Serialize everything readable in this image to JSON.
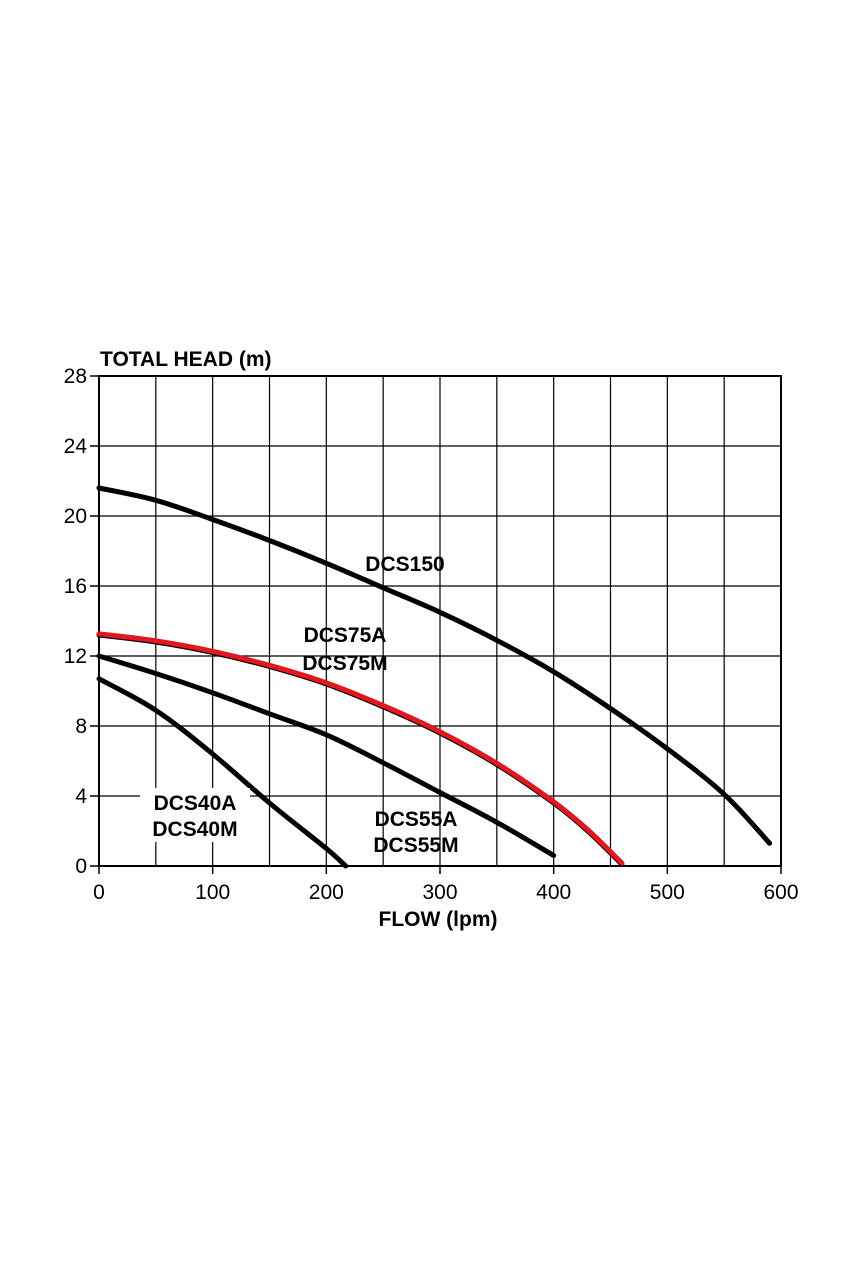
{
  "chart_data": {
    "type": "line",
    "ylabel": "TOTAL HEAD (m)",
    "xlabel": "FLOW (lpm)",
    "xlim": [
      0,
      600
    ],
    "ylim": [
      0,
      28
    ],
    "xticks": [
      0,
      100,
      200,
      300,
      400,
      500,
      600
    ],
    "yticks": [
      0,
      4,
      8,
      12,
      16,
      20,
      24,
      28
    ],
    "x_grid_step": 50,
    "y_grid_step": 4,
    "grid": true,
    "series": [
      {
        "name": "DCS150",
        "labels": [
          "DCS150"
        ],
        "color": "#000000",
        "points": [
          [
            0,
            21.6
          ],
          [
            50,
            20.9
          ],
          [
            100,
            19.8
          ],
          [
            150,
            18.6
          ],
          [
            200,
            17.3
          ],
          [
            250,
            15.9
          ],
          [
            300,
            14.5
          ],
          [
            350,
            12.9
          ],
          [
            400,
            11.1
          ],
          [
            450,
            9.0
          ],
          [
            500,
            6.7
          ],
          [
            550,
            4.1
          ],
          [
            590,
            1.3
          ]
        ]
      },
      {
        "name": "DCS75A / DCS75M",
        "labels": [
          "DCS75A",
          "DCS75M"
        ],
        "color": "#000000",
        "accent": "#e3171f",
        "points": [
          [
            0,
            13.2
          ],
          [
            50,
            12.8
          ],
          [
            100,
            12.2
          ],
          [
            150,
            11.4
          ],
          [
            200,
            10.4
          ],
          [
            250,
            9.1
          ],
          [
            300,
            7.6
          ],
          [
            350,
            5.8
          ],
          [
            400,
            3.6
          ],
          [
            430,
            2.0
          ],
          [
            460,
            0.1
          ]
        ]
      },
      {
        "name": "DCS55A / DCS55M",
        "labels": [
          "DCS55A",
          "DCS55M"
        ],
        "color": "#000000",
        "points": [
          [
            0,
            12.0
          ],
          [
            50,
            11.0
          ],
          [
            100,
            9.9
          ],
          [
            150,
            8.7
          ],
          [
            200,
            7.5
          ],
          [
            250,
            5.9
          ],
          [
            300,
            4.2
          ],
          [
            350,
            2.5
          ],
          [
            400,
            0.6
          ]
        ]
      },
      {
        "name": "DCS40A / DCS40M",
        "labels": [
          "DCS40A",
          "DCS40M"
        ],
        "color": "#000000",
        "points": [
          [
            0,
            10.7
          ],
          [
            50,
            8.9
          ],
          [
            100,
            6.4
          ],
          [
            150,
            3.6
          ],
          [
            200,
            1.0
          ],
          [
            217,
            0.0
          ]
        ]
      }
    ]
  }
}
